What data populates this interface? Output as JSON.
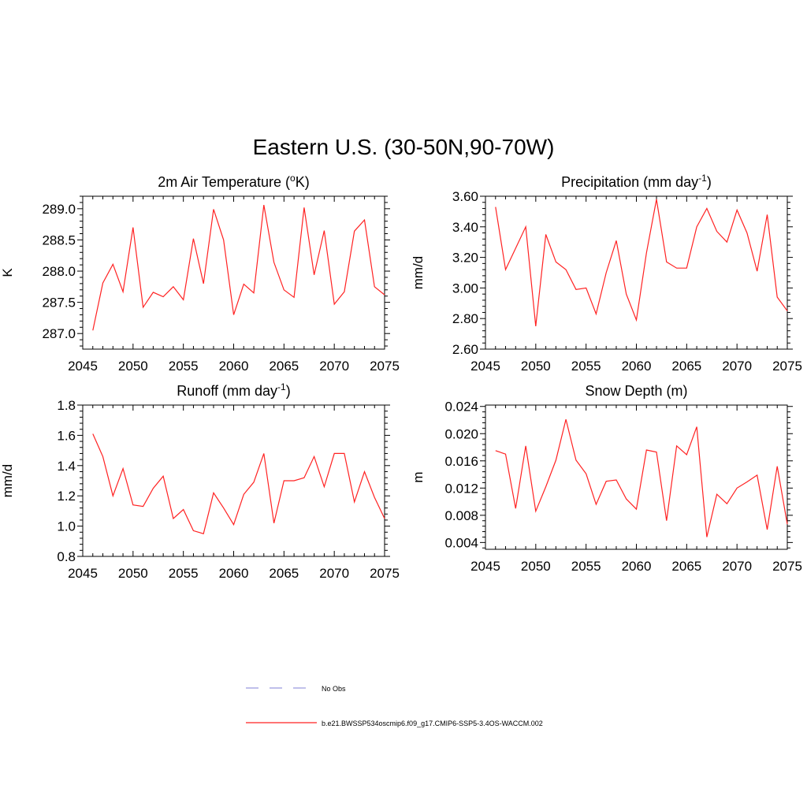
{
  "figure_title": "Eastern U.S. (30-50N,90-70W)",
  "legend": [
    {
      "label": "No Obs",
      "color": "#9999dd",
      "style": "dashed"
    },
    {
      "label": "b.e21.BWSSP534oscmip6.f09_g17.CMIP6-SSP5-3.4OS-WACCM.002",
      "color": "#ff2222",
      "style": "solid"
    }
  ],
  "chart_data": [
    {
      "type": "line",
      "title": "2m Air Temperature (",
      "title_sup": "o",
      "title_end": "K)",
      "xlabel": "",
      "ylabel": "K",
      "xlim": [
        2045,
        2075
      ],
      "ylim": [
        286.75,
        289.2
      ],
      "xticks": [
        2045,
        2050,
        2055,
        2060,
        2065,
        2070,
        2075
      ],
      "yticks": [
        287.0,
        287.5,
        288.0,
        288.5,
        289.0
      ],
      "ytick_labels": [
        "287.0",
        "287.5",
        "288.0",
        "288.5",
        "289.0"
      ],
      "series": [
        {
          "name": "b.e21.BWSSP534oscmip6.f09_g17.CMIP6-SSP5-3.4OS-WACCM.002",
          "color": "#ff2222",
          "x": [
            2046,
            2047,
            2048,
            2049,
            2050,
            2051,
            2052,
            2053,
            2054,
            2055,
            2056,
            2057,
            2058,
            2059,
            2060,
            2061,
            2062,
            2063,
            2064,
            2065,
            2066,
            2067,
            2068,
            2069,
            2070,
            2071,
            2072,
            2073,
            2074,
            2075
          ],
          "values": [
            287.05,
            287.81,
            288.11,
            287.67,
            288.7,
            287.42,
            287.66,
            287.59,
            287.75,
            287.54,
            288.52,
            287.8,
            288.99,
            288.5,
            287.3,
            287.79,
            287.65,
            289.06,
            288.14,
            287.7,
            287.58,
            289.02,
            287.94,
            288.65,
            287.47,
            287.67,
            288.64,
            288.82,
            287.75,
            287.62
          ]
        }
      ]
    },
    {
      "type": "line",
      "title": "Precipitation (mm day",
      "title_sup": "-1",
      "title_end": ")",
      "xlabel": "",
      "ylabel": "mm/d",
      "xlim": [
        2045,
        2075
      ],
      "ylim": [
        2.6,
        3.6
      ],
      "xticks": [
        2045,
        2050,
        2055,
        2060,
        2065,
        2070,
        2075
      ],
      "yticks": [
        2.6,
        2.8,
        3.0,
        3.2,
        3.4,
        3.6
      ],
      "ytick_labels": [
        "2.60",
        "2.80",
        "3.00",
        "3.20",
        "3.40",
        "3.60"
      ],
      "series": [
        {
          "name": "b.e21.BWSSP534oscmip6.f09_g17.CMIP6-SSP5-3.4OS-WACCM.002",
          "color": "#ff2222",
          "x": [
            2046,
            2047,
            2048,
            2049,
            2050,
            2051,
            2052,
            2053,
            2054,
            2055,
            2056,
            2057,
            2058,
            2059,
            2060,
            2061,
            2062,
            2063,
            2064,
            2065,
            2066,
            2067,
            2068,
            2069,
            2070,
            2071,
            2072,
            2073,
            2074,
            2075
          ],
          "values": [
            3.53,
            3.12,
            3.26,
            3.4,
            2.75,
            3.35,
            3.17,
            3.12,
            2.99,
            3.0,
            2.83,
            3.1,
            3.31,
            2.96,
            2.79,
            3.23,
            3.58,
            3.17,
            3.13,
            3.13,
            3.4,
            3.52,
            3.37,
            3.3,
            3.51,
            3.36,
            3.11,
            3.48,
            2.94,
            2.85
          ]
        }
      ]
    },
    {
      "type": "line",
      "title": "Runoff (mm day",
      "title_sup": "-1",
      "title_end": ")",
      "xlabel": "",
      "ylabel": "mm/d",
      "xlim": [
        2045,
        2075
      ],
      "ylim": [
        0.8,
        1.8
      ],
      "xticks": [
        2045,
        2050,
        2055,
        2060,
        2065,
        2070,
        2075
      ],
      "yticks": [
        0.8,
        1.0,
        1.2,
        1.4,
        1.6,
        1.8
      ],
      "ytick_labels": [
        "0.8",
        "1.0",
        "1.2",
        "1.4",
        "1.6",
        "1.8"
      ],
      "series": [
        {
          "name": "b.e21.BWSSP534oscmip6.f09_g17.CMIP6-SSP5-3.4OS-WACCM.002",
          "color": "#ff2222",
          "x": [
            2046,
            2047,
            2048,
            2049,
            2050,
            2051,
            2052,
            2053,
            2054,
            2055,
            2056,
            2057,
            2058,
            2059,
            2060,
            2061,
            2062,
            2063,
            2064,
            2065,
            2066,
            2067,
            2068,
            2069,
            2070,
            2071,
            2072,
            2073,
            2074,
            2075
          ],
          "values": [
            1.61,
            1.46,
            1.2,
            1.38,
            1.14,
            1.13,
            1.25,
            1.33,
            1.05,
            1.11,
            0.97,
            0.95,
            1.22,
            1.12,
            1.01,
            1.21,
            1.29,
            1.48,
            1.02,
            1.3,
            1.3,
            1.32,
            1.46,
            1.26,
            1.48,
            1.48,
            1.16,
            1.36,
            1.19,
            1.05
          ]
        }
      ]
    },
    {
      "type": "line",
      "title": "Snow Depth (m)",
      "title_sup": "",
      "title_end": "",
      "xlabel": "",
      "ylabel": "m",
      "xlim": [
        2045,
        2075
      ],
      "ylim": [
        0.003,
        0.0242
      ],
      "xticks": [
        2045,
        2050,
        2055,
        2060,
        2065,
        2070,
        2075
      ],
      "yticks": [
        0.004,
        0.008,
        0.012,
        0.016,
        0.02,
        0.024
      ],
      "ytick_labels": [
        "0.004",
        "0.008",
        "0.012",
        "0.016",
        "0.020",
        "0.024"
      ],
      "series": [
        {
          "name": "b.e21.BWSSP534oscmip6.f09_g17.CMIP6-SSP5-3.4OS-WACCM.002",
          "color": "#ff2222",
          "x": [
            2046,
            2047,
            2048,
            2049,
            2050,
            2051,
            2052,
            2053,
            2054,
            2055,
            2056,
            2057,
            2058,
            2059,
            2060,
            2061,
            2062,
            2063,
            2064,
            2065,
            2066,
            2067,
            2068,
            2069,
            2070,
            2071,
            2072,
            2073,
            2074,
            2075
          ],
          "values": [
            0.0175,
            0.017,
            0.009,
            0.0182,
            0.0086,
            0.0122,
            0.0161,
            0.0221,
            0.0161,
            0.0141,
            0.0096,
            0.013,
            0.0132,
            0.0104,
            0.0089,
            0.0176,
            0.0173,
            0.0072,
            0.0182,
            0.0169,
            0.021,
            0.0048,
            0.0111,
            0.0097,
            0.012,
            0.0129,
            0.0139,
            0.0059,
            0.0152,
            0.0067
          ]
        }
      ]
    }
  ]
}
